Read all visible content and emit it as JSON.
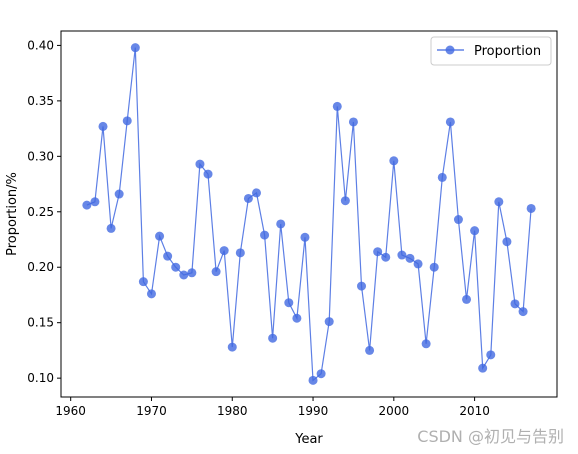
{
  "chart_data": {
    "type": "line",
    "title": "",
    "xlabel": "Year",
    "ylabel": "Proportion/%",
    "xlim": [
      1958.8,
      2020.2
    ],
    "ylim": [
      0.083,
      0.413
    ],
    "xticks": [
      1960,
      1970,
      1980,
      1990,
      2000,
      2010
    ],
    "yticks": [
      0.1,
      0.15,
      0.2,
      0.25,
      0.3,
      0.35,
      0.4
    ],
    "xtick_labels": [
      "1960",
      "1970",
      "1980",
      "1990",
      "2000",
      "2010"
    ],
    "ytick_labels": [
      "0.10",
      "0.15",
      "0.20",
      "0.25",
      "0.30",
      "0.35",
      "0.40"
    ],
    "grid": false,
    "legend_position": "top-right",
    "marker": "circle",
    "series": [
      {
        "name": "Proportion",
        "color": "#4169e1",
        "x": [
          1962,
          1963,
          1964,
          1965,
          1966,
          1967,
          1968,
          1969,
          1970,
          1971,
          1972,
          1973,
          1974,
          1975,
          1976,
          1977,
          1978,
          1979,
          1980,
          1981,
          1982,
          1983,
          1984,
          1985,
          1986,
          1987,
          1988,
          1989,
          1990,
          1991,
          1992,
          1993,
          1994,
          1995,
          1996,
          1997,
          1998,
          1999,
          2000,
          2001,
          2002,
          2003,
          2004,
          2005,
          2006,
          2007,
          2008,
          2009,
          2010,
          2011,
          2012,
          2013,
          2014,
          2015,
          2016,
          2017
        ],
        "values": [
          0.256,
          0.259,
          0.327,
          0.235,
          0.266,
          0.332,
          0.398,
          0.187,
          0.176,
          0.228,
          0.21,
          0.2,
          0.193,
          0.195,
          0.293,
          0.284,
          0.196,
          0.215,
          0.128,
          0.213,
          0.262,
          0.267,
          0.229,
          0.136,
          0.239,
          0.168,
          0.154,
          0.227,
          0.098,
          0.104,
          0.151,
          0.345,
          0.26,
          0.331,
          0.183,
          0.125,
          0.214,
          0.209,
          0.296,
          0.211,
          0.208,
          0.203,
          0.131,
          0.2,
          0.281,
          0.331,
          0.243,
          0.171,
          0.233,
          0.109,
          0.121,
          0.259,
          0.223,
          0.167,
          0.16,
          0.253
        ]
      }
    ]
  },
  "watermark": "CSDN @初见与告别"
}
